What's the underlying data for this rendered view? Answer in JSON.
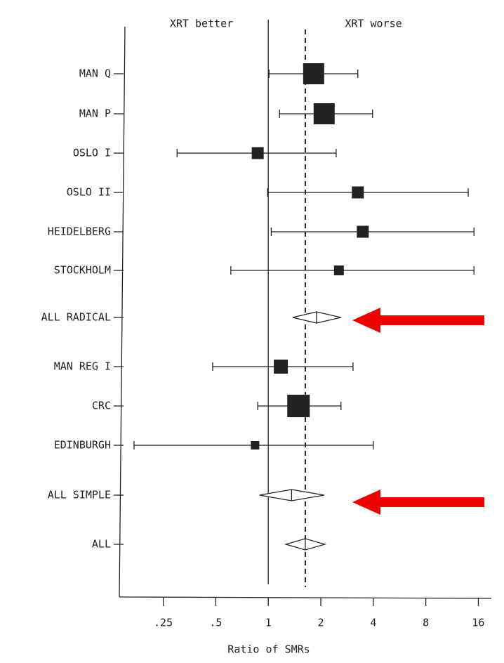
{
  "chart_data": {
    "type": "forest",
    "left_heading": "XRT better",
    "right_heading": "XRT worse",
    "x_label": "Ratio of SMRs",
    "log_x": true,
    "reference": 1,
    "color": "#222222",
    "xlim": [
      0.14,
      19
    ],
    "xticks": [
      {
        "value": 0.25,
        "label": ".25"
      },
      {
        "value": 0.5,
        "label": ".5"
      },
      1,
      2,
      4,
      8,
      16
    ],
    "categories": [
      "MAN Q",
      "MAN P",
      "OSLO I",
      "OSLO II",
      "HEIDELBERG",
      "STOCKHOLM",
      "ALL RADICAL",
      "MAN REG I",
      "CRC",
      "EDINBURGH",
      "ALL SIMPLE",
      "ALL"
    ],
    "estimate": [
      1.82,
      2.09,
      0.87,
      3.26,
      3.48,
      2.54,
      1.89,
      1.18,
      1.49,
      0.84,
      1.36,
      1.63
    ],
    "lower": [
      1.01,
      1.16,
      0.3,
      0.99,
      1.04,
      0.61,
      1.38,
      0.48,
      0.87,
      0.17,
      0.89,
      1.26
    ],
    "upper": [
      3.26,
      3.96,
      2.45,
      14.0,
      15.1,
      15.1,
      2.61,
      3.06,
      2.61,
      4.0,
      2.09,
      2.11
    ],
    "weight": [
      30,
      30,
      17,
      17,
      17,
      14,
      null,
      20,
      32,
      12,
      null,
      null
    ]
  }
}
